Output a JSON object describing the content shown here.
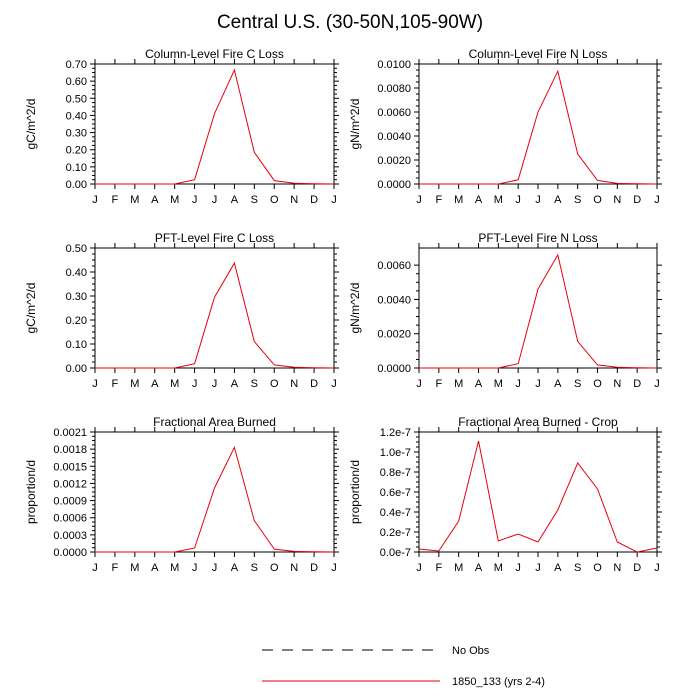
{
  "figure": {
    "title": "Central U.S. (30-50N,105-90W)"
  },
  "colors": {
    "series": "#e8000b",
    "axis": "#000000"
  },
  "legend": {
    "obs_label": "No Obs",
    "model_label": "1850_133 (yrs 2-4)"
  },
  "chart_data": [
    {
      "type": "line",
      "title": "Column-Level Fire C Loss",
      "xlabel": "",
      "ylabel": "gC/m^2/d",
      "categories": [
        "J",
        "F",
        "M",
        "A",
        "M",
        "J",
        "J",
        "A",
        "S",
        "O",
        "N",
        "D",
        "J"
      ],
      "ylim": [
        0,
        0.7
      ],
      "yticks": [
        "0.00",
        "0.10",
        "0.20",
        "0.30",
        "0.40",
        "0.50",
        "0.60",
        "0.70"
      ],
      "series": [
        {
          "name": "1850_133 (yrs 2-4)",
          "values": [
            0.0,
            0.0,
            0.0,
            0.0,
            0.0,
            0.025,
            0.41,
            0.665,
            0.185,
            0.02,
            0.004,
            0.001,
            0.0
          ]
        }
      ]
    },
    {
      "type": "line",
      "title": "Column-Level Fire N Loss",
      "xlabel": "",
      "ylabel": "gN/m^2/d",
      "categories": [
        "J",
        "F",
        "M",
        "A",
        "M",
        "J",
        "J",
        "A",
        "S",
        "O",
        "N",
        "D",
        "J"
      ],
      "ylim": [
        0,
        0.01
      ],
      "yticks": [
        "0.0000",
        "0.0020",
        "0.0040",
        "0.0060",
        "0.0080",
        "0.0100"
      ],
      "series": [
        {
          "name": "1850_133 (yrs 2-4)",
          "values": [
            0.0,
            0.0,
            0.0,
            0.0,
            0.0,
            0.00035,
            0.006,
            0.0094,
            0.0025,
            0.0003,
            5e-05,
            2e-05,
            0.0
          ]
        }
      ]
    },
    {
      "type": "line",
      "title": "PFT-Level Fire C Loss",
      "xlabel": "",
      "ylabel": "gC/m^2/d",
      "categories": [
        "J",
        "F",
        "M",
        "A",
        "M",
        "J",
        "J",
        "A",
        "S",
        "O",
        "N",
        "D",
        "J"
      ],
      "ylim": [
        0,
        0.5
      ],
      "yticks": [
        "0.00",
        "0.10",
        "0.20",
        "0.30",
        "0.40",
        "0.50"
      ],
      "series": [
        {
          "name": "1850_133 (yrs 2-4)",
          "values": [
            0.0,
            0.0,
            0.0,
            0.0,
            0.0,
            0.018,
            0.295,
            0.437,
            0.11,
            0.013,
            0.003,
            0.001,
            0.0
          ]
        }
      ]
    },
    {
      "type": "line",
      "title": "PFT-Level Fire N Loss",
      "xlabel": "",
      "ylabel": "gN/m^2/d",
      "categories": [
        "J",
        "F",
        "M",
        "A",
        "M",
        "J",
        "J",
        "A",
        "S",
        "O",
        "N",
        "D",
        "J"
      ],
      "ylim": [
        0,
        0.007
      ],
      "yticks": [
        "0.0000",
        "0.0020",
        "0.0040",
        "0.0060"
      ],
      "series": [
        {
          "name": "1850_133 (yrs 2-4)",
          "values": [
            0.0,
            0.0,
            0.0,
            0.0,
            0.0,
            0.00025,
            0.0046,
            0.0066,
            0.00155,
            0.00018,
            4e-05,
            1e-05,
            0.0
          ]
        }
      ]
    },
    {
      "type": "line",
      "title": "Fractional Area Burned",
      "xlabel": "",
      "ylabel": "proportion/d",
      "categories": [
        "J",
        "F",
        "M",
        "A",
        "M",
        "J",
        "J",
        "A",
        "S",
        "O",
        "N",
        "D",
        "J"
      ],
      "ylim": [
        0,
        0.0021
      ],
      "yticks": [
        "0.0000",
        "0.0003",
        "0.0006",
        "0.0009",
        "0.0012",
        "0.0015",
        "0.0018",
        "0.0021"
      ],
      "series": [
        {
          "name": "1850_133 (yrs 2-4)",
          "values": [
            0.0,
            0.0,
            0.0,
            0.0,
            0.0,
            7e-05,
            0.00112,
            0.00183,
            0.00055,
            5e-05,
            1e-05,
            3e-06,
            0.0
          ]
        }
      ]
    },
    {
      "type": "line",
      "title": "Fractional Area Burned - Crop",
      "xlabel": "",
      "ylabel": "proportion/d",
      "categories": [
        "J",
        "F",
        "M",
        "A",
        "M",
        "J",
        "J",
        "A",
        "S",
        "O",
        "N",
        "D",
        "J"
      ],
      "ylim": [
        0,
        1.2e-07
      ],
      "yticks": [
        "0.0e-7",
        "0.2e-7",
        "0.4e-7",
        "0.6e-7",
        "0.8e-7",
        "1.0e-7",
        "1.2e-7"
      ],
      "series": [
        {
          "name": "1850_133 (yrs 2-4)",
          "values": [
            3e-09,
            1e-09,
            3.1e-08,
            1.11e-07,
            1.1e-08,
            1.8e-08,
            1e-08,
            4.2e-08,
            8.9e-08,
            6.3e-08,
            1e-08,
            0.0,
            4e-09
          ]
        }
      ]
    }
  ]
}
